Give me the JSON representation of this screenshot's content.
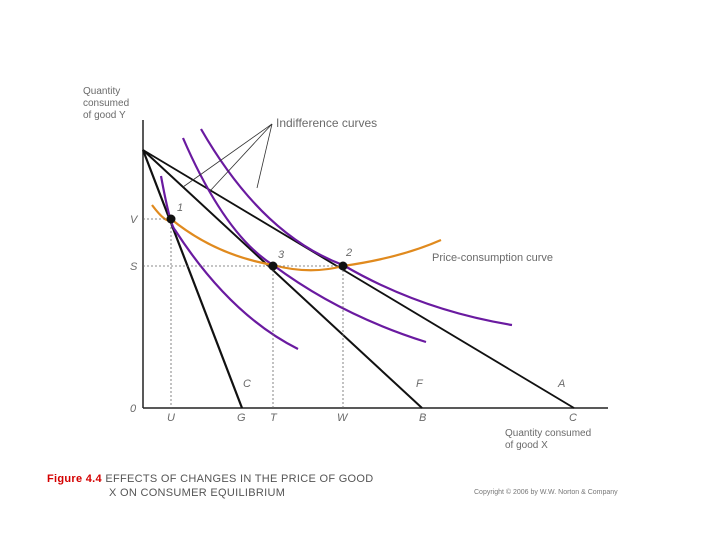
{
  "y_axis_label": [
    "Quantity",
    "consumed",
    "of good Y"
  ],
  "x_axis_label": [
    "Quantity consumed",
    "of good X"
  ],
  "y_ticks": [
    "V",
    "S",
    "0"
  ],
  "x_ticks": [
    "U",
    "G",
    "T",
    "W",
    "B",
    "C"
  ],
  "budget_line_labels": [
    "C",
    "F",
    "A"
  ],
  "point_labels": [
    "1",
    "3",
    "2"
  ],
  "indifference_label": "Indifference curves",
  "pcc_label": "Price-consumption curve",
  "caption": {
    "figure": "Figure 4.4",
    "line1": "EFFECTS OF CHANGES IN THE PRICE OF GOOD",
    "line2": "X ON CONSUMER EQUILIBRIUM"
  },
  "copyright": "Copyright © 2006 by W.W. Norton & Company",
  "colors": {
    "curve": "#6a1aa0",
    "pcc": "#e08a1e",
    "line": "#111111",
    "caption_red": "#d40000"
  }
}
